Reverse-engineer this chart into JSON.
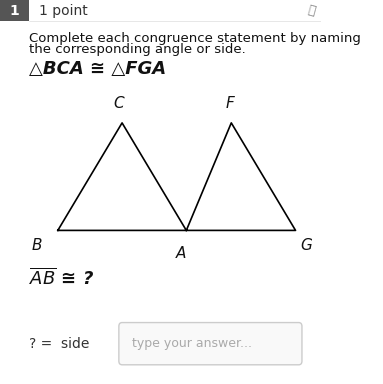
{
  "background_color": "#ffffff",
  "question_number": "1",
  "points_label": "1 point",
  "instruction_line1": "Complete each congruence statement by naming",
  "instruction_line2": "the corresponding angle or side.",
  "congruence_statement": "△BCA ≅ △FGA",
  "triangle1": {
    "vertices": {
      "B": [
        0.18,
        0.4
      ],
      "C": [
        0.38,
        0.68
      ],
      "A": [
        0.58,
        0.4
      ]
    },
    "labels": {
      "B": [
        0.13,
        0.38
      ],
      "C": [
        0.37,
        0.71
      ],
      "A": [
        0.565,
        0.36
      ]
    }
  },
  "triangle2": {
    "vertices": {
      "F": [
        0.72,
        0.68
      ],
      "G": [
        0.92,
        0.4
      ],
      "A": [
        0.58,
        0.4
      ]
    },
    "labels": {
      "F": [
        0.715,
        0.71
      ],
      "G": [
        0.935,
        0.38
      ]
    }
  },
  "answer_prefix": "? =  side",
  "answer_box_text": "type your answer...",
  "badge_color": "#555555",
  "line_color": "#000000",
  "text_color": "#111111",
  "gray_text": "#333333",
  "placeholder_color": "#aaaaaa",
  "box_edge_color": "#cccccc",
  "box_face_color": "#f9f9f9"
}
